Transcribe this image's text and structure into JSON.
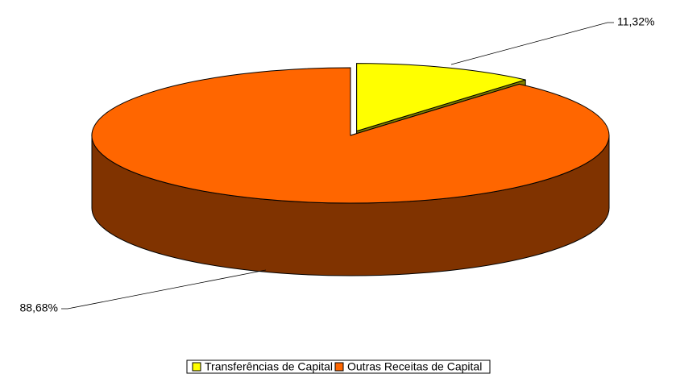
{
  "chart_data": {
    "type": "pie3d",
    "categories": [
      "Transferências de Capital",
      "Outras Receitas de Capital"
    ],
    "values": [
      11.32,
      88.68
    ],
    "value_labels": [
      "11,32%",
      "88,68%"
    ],
    "colors": [
      "#ffff00",
      "#ff6600"
    ]
  }
}
